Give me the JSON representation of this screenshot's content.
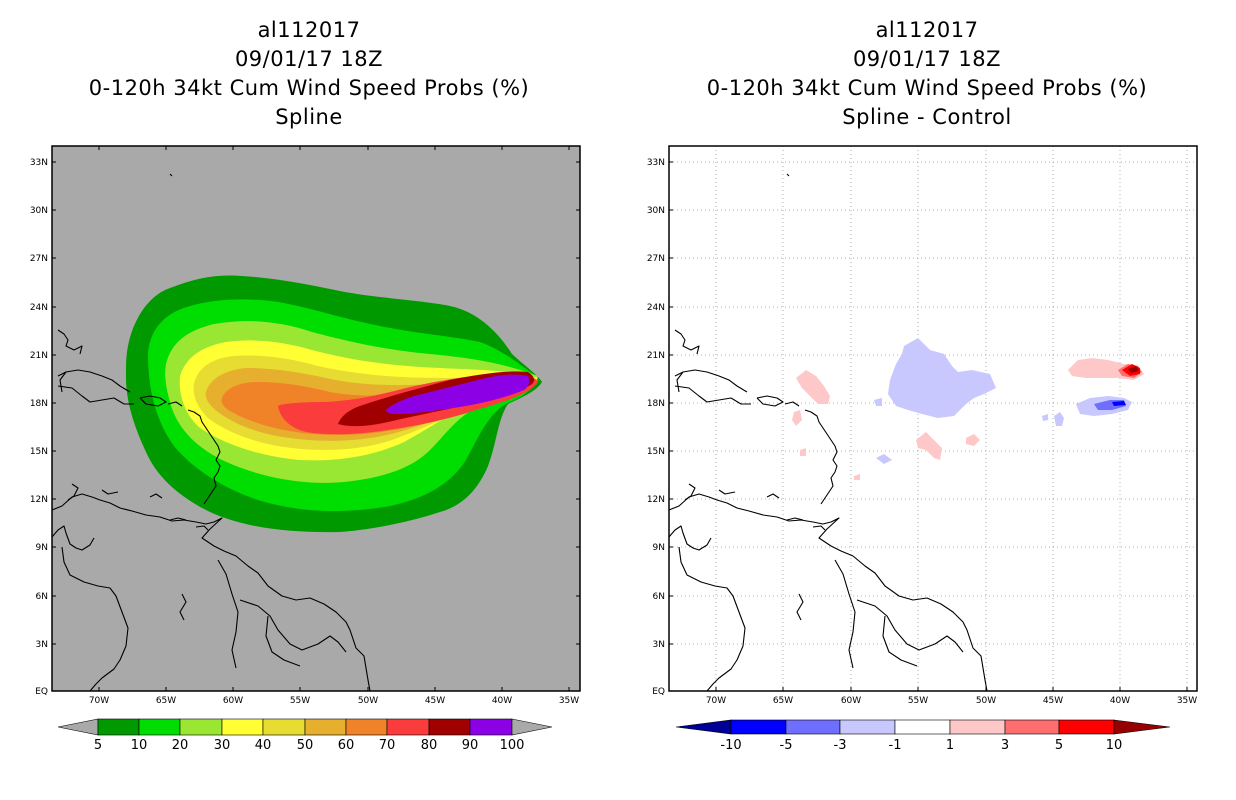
{
  "left_panel": {
    "title_lines": [
      "al112017",
      "09/01/17 18Z",
      "0-120h 34kt Cum Wind Speed Probs (%)",
      "Spline"
    ],
    "background_color": "#a9a9a9",
    "colorbar": {
      "labels": [
        "5",
        "10",
        "20",
        "30",
        "40",
        "50",
        "60",
        "70",
        "80",
        "90",
        "100"
      ],
      "colors": [
        "#009900",
        "#00dd00",
        "#99e633",
        "#ffff33",
        "#e6dc32",
        "#e6af2d",
        "#f08228",
        "#fa3c3c",
        "#a00000",
        "#8c00e6"
      ]
    }
  },
  "right_panel": {
    "title_lines": [
      "al112017",
      "09/01/17 18Z",
      "0-120h 34kt Cum Wind Speed Probs (%)",
      "Spline - Control"
    ],
    "background_color": "#ffffff",
    "colorbar": {
      "labels": [
        "-10",
        "-5",
        "-3",
        "-1",
        "1",
        "3",
        "5",
        "10"
      ],
      "colors": [
        "#0000ff",
        "#6e6eff",
        "#c8c8ff",
        "#ffffff",
        "#ffc8c8",
        "#ff6e6e",
        "#ff0000"
      ],
      "left_end_color": "#000096",
      "right_end_color": "#960000"
    }
  },
  "axes": {
    "lat_labels": [
      "33N",
      "30N",
      "27N",
      "24N",
      "21N",
      "18N",
      "15N",
      "12N",
      "9N",
      "6N",
      "3N",
      "EQ"
    ],
    "lon_labels": [
      "70W",
      "65W",
      "60W",
      "55W",
      "50W",
      "45W",
      "40W",
      "35W"
    ]
  },
  "legend_colors": {
    "gray_end": "#a9a9a9",
    "grid_line": "#9a9a9a"
  },
  "map_data": {
    "region": "Caribbean / tropical Atlantic",
    "lat_range_deg": [
      0,
      33.5
    ],
    "lon_range_deg": [
      -75,
      -34
    ],
    "storm_id": "al112017",
    "init_time": "09/01/17 18Z"
  }
}
